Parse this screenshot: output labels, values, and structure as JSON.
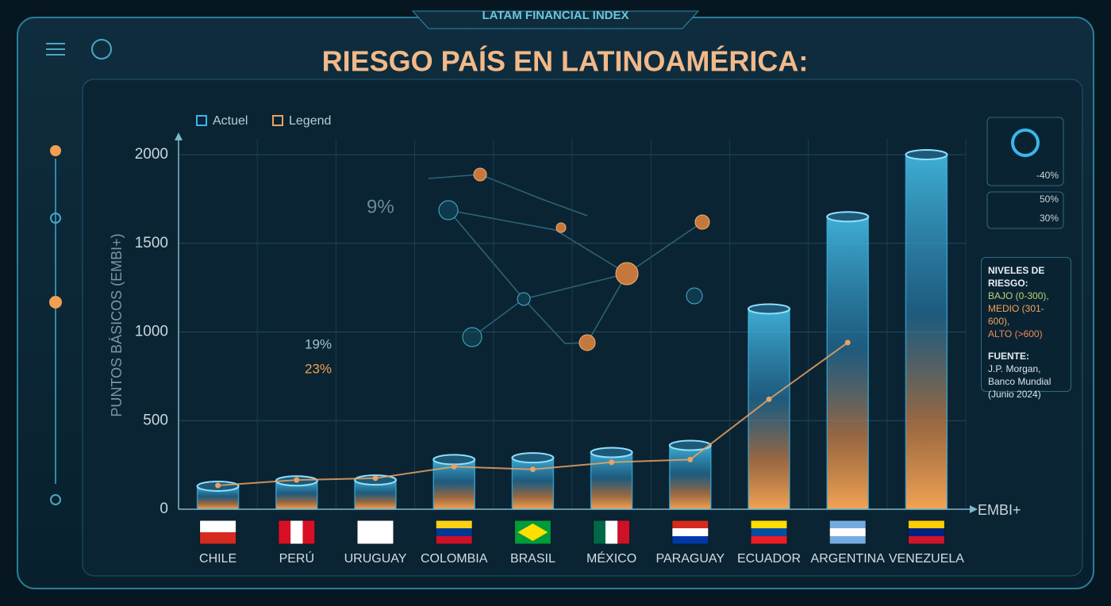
{
  "chart_data": {
    "type": "bar",
    "header": "LATAM FINANCIAL INDEX",
    "title": "RIESGO PAÍS EN LATINOAMÉRICA:",
    "y_label": "PUNTOS BÁSICOS (EMBI+)",
    "x_label": "EMBI+",
    "categories": [
      "CHILE",
      "PERÚ",
      "URUGUAY",
      "COLOMBIA",
      "BRASIL",
      "MÉXICO",
      "PARAGUAY",
      "ECUADOR",
      "ARGENTINA",
      "VENEZUELA"
    ],
    "series": [
      {
        "name": "Actuel",
        "color": "#3ab8e8",
        "type": "bar",
        "values": [
          130,
          160,
          165,
          280,
          290,
          320,
          360,
          1130,
          1650,
          2000
        ]
      },
      {
        "name": "Legend",
        "color": "#e9a263",
        "type": "line",
        "values": [
          134,
          165,
          175,
          240,
          225,
          265,
          280,
          620,
          940,
          null
        ]
      }
    ],
    "ylim": [
      0,
      2000
    ],
    "yticks": [
      0,
      500,
      1000,
      1500,
      2000
    ],
    "grid": true,
    "annotations": [
      "9%",
      "19%",
      "23%",
      "-40%",
      "50%",
      "30%"
    ],
    "risk_panel": {
      "title": "NIVELES DE RIESGO:",
      "levels": [
        {
          "label": "BAJO (0-300),",
          "color": "#b9d66c"
        },
        {
          "label": "MEDIO (301-600),",
          "color": "#f0a35a"
        },
        {
          "label": "ALTO (>600)",
          "color": "#f08a5a"
        }
      ],
      "source_title": "FUENTE:",
      "source": "J.P. Morgan, Banco Mundial (Junio 2024)"
    }
  }
}
